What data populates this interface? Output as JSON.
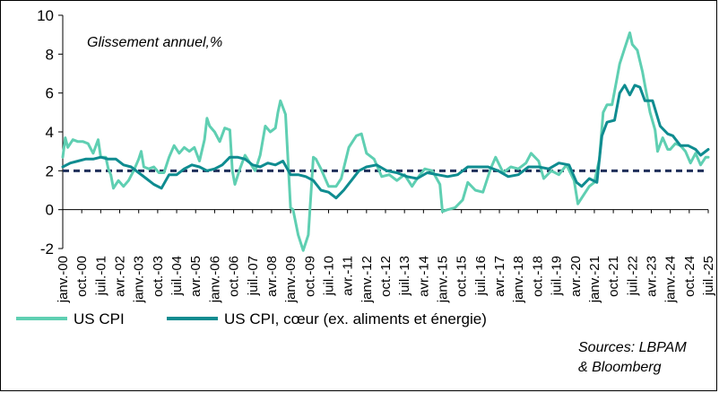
{
  "chart_data": {
    "type": "line",
    "subtitle": "Glissement annuel,%",
    "ylim": [
      -2,
      10
    ],
    "yticks": [
      -2,
      0,
      2,
      4,
      6,
      8,
      10
    ],
    "xlim": [
      2000.0,
      2025.5
    ],
    "reference_line": {
      "y": 2,
      "style": "dashed",
      "color": "#1f2f5a"
    },
    "xtick_labels": [
      "janv.-00",
      "oct.-00",
      "juil.-01",
      "avr.-02",
      "janv.-03",
      "oct.-03",
      "juil.-04",
      "avr.-05",
      "janv.-06",
      "oct.-06",
      "juil.-07",
      "avr.-08",
      "janv.-09",
      "oct.-09",
      "juil.-10",
      "avr.-11",
      "janv.-12",
      "oct.-12",
      "juil.-13",
      "avr.-14",
      "janv.-15",
      "oct.-15",
      "juil.-16",
      "avr.-17",
      "janv.-18",
      "oct.-18",
      "juil.-19",
      "avr.-20",
      "janv.-21",
      "oct.-21",
      "juil.-22",
      "avr.-23",
      "janv.-24",
      "oct.-24",
      "juil.-25"
    ],
    "series": [
      {
        "name": "US CPI",
        "color": "#5fcfb2",
        "x": [
          2000.0,
          2000.1,
          2000.2,
          2000.4,
          2000.6,
          2000.8,
          2001.0,
          2001.2,
          2001.4,
          2001.5,
          2001.7,
          2001.8,
          2001.9,
          2002.0,
          2002.2,
          2002.4,
          2002.6,
          2002.8,
          2003.0,
          2003.1,
          2003.2,
          2003.4,
          2003.6,
          2003.8,
          2004.0,
          2004.2,
          2004.4,
          2004.6,
          2004.8,
          2005.0,
          2005.2,
          2005.4,
          2005.6,
          2005.7,
          2005.8,
          2006.0,
          2006.2,
          2006.4,
          2006.6,
          2006.7,
          2006.8,
          2007.0,
          2007.2,
          2007.4,
          2007.6,
          2007.8,
          2008.0,
          2008.2,
          2008.4,
          2008.5,
          2008.6,
          2008.8,
          2009.0,
          2009.1,
          2009.3,
          2009.5,
          2009.7,
          2009.9,
          2010.0,
          2010.2,
          2010.5,
          2010.8,
          2011.0,
          2011.3,
          2011.6,
          2011.8,
          2012.0,
          2012.3,
          2012.6,
          2012.9,
          2013.2,
          2013.5,
          2013.8,
          2014.0,
          2014.3,
          2014.6,
          2014.9,
          2015.0,
          2015.2,
          2015.5,
          2015.8,
          2016.0,
          2016.3,
          2016.6,
          2016.9,
          2017.1,
          2017.4,
          2017.7,
          2018.0,
          2018.3,
          2018.5,
          2018.8,
          2019.0,
          2019.3,
          2019.6,
          2019.9,
          2020.2,
          2020.35,
          2020.5,
          2020.8,
          2021.0,
          2021.2,
          2021.35,
          2021.5,
          2021.7,
          2021.9,
          2022.0,
          2022.2,
          2022.4,
          2022.5,
          2022.7,
          2022.9,
          2023.0,
          2023.2,
          2023.4,
          2023.5,
          2023.7,
          2023.9,
          2024.0,
          2024.2,
          2024.4,
          2024.6,
          2024.8,
          2025.0,
          2025.2,
          2025.4,
          2025.5
        ],
        "y": [
          2.7,
          3.7,
          3.2,
          3.6,
          3.5,
          3.5,
          3.4,
          2.9,
          3.6,
          2.7,
          2.7,
          2.1,
          1.8,
          1.1,
          1.5,
          1.2,
          1.5,
          2.0,
          2.6,
          3.0,
          2.2,
          2.1,
          2.2,
          1.9,
          1.9,
          2.7,
          3.3,
          2.9,
          3.2,
          3.0,
          3.2,
          2.5,
          3.6,
          4.7,
          4.3,
          4.0,
          3.5,
          4.2,
          4.1,
          2.0,
          1.3,
          2.1,
          2.8,
          2.4,
          2.0,
          2.8,
          4.3,
          4.0,
          4.2,
          5.0,
          5.6,
          4.9,
          0.1,
          0.0,
          -1.3,
          -2.1,
          -1.3,
          2.7,
          2.6,
          2.1,
          1.2,
          1.2,
          1.6,
          3.2,
          3.8,
          3.9,
          2.9,
          2.6,
          1.7,
          1.8,
          1.5,
          1.8,
          1.2,
          1.6,
          2.1,
          2.0,
          1.3,
          -0.1,
          0.0,
          0.1,
          0.5,
          1.4,
          1.0,
          0.9,
          2.1,
          2.7,
          1.9,
          2.2,
          2.1,
          2.4,
          2.9,
          2.5,
          1.6,
          2.0,
          1.8,
          2.3,
          1.5,
          0.3,
          0.6,
          1.2,
          1.4,
          2.6,
          5.0,
          5.4,
          5.4,
          6.8,
          7.5,
          8.3,
          9.1,
          8.5,
          8.2,
          7.1,
          6.4,
          5.0,
          4.1,
          3.0,
          3.7,
          3.1,
          3.1,
          3.4,
          3.3,
          3.0,
          2.4,
          2.9,
          2.3,
          2.7,
          2.7
        ]
      },
      {
        "name": "US CPI, cœur (ex. aliments et énergie)",
        "color": "#0f8c90",
        "x": [
          2000.0,
          2000.3,
          2000.6,
          2000.9,
          2001.2,
          2001.5,
          2001.8,
          2002.1,
          2002.4,
          2002.7,
          2003.0,
          2003.3,
          2003.6,
          2003.9,
          2004.2,
          2004.5,
          2004.8,
          2005.1,
          2005.4,
          2005.7,
          2006.0,
          2006.3,
          2006.6,
          2006.9,
          2007.2,
          2007.5,
          2007.8,
          2008.1,
          2008.4,
          2008.7,
          2009.0,
          2009.3,
          2009.6,
          2009.9,
          2010.2,
          2010.5,
          2010.8,
          2011.1,
          2011.4,
          2011.7,
          2012.0,
          2012.4,
          2012.8,
          2013.2,
          2013.6,
          2014.0,
          2014.4,
          2014.8,
          2015.2,
          2015.6,
          2016.0,
          2016.4,
          2016.8,
          2017.2,
          2017.6,
          2018.0,
          2018.4,
          2018.8,
          2019.2,
          2019.6,
          2020.0,
          2020.3,
          2020.5,
          2020.8,
          2021.1,
          2021.3,
          2021.5,
          2021.8,
          2022.0,
          2022.2,
          2022.4,
          2022.6,
          2022.8,
          2023.0,
          2023.3,
          2023.6,
          2023.9,
          2024.1,
          2024.4,
          2024.7,
          2025.0,
          2025.2,
          2025.5
        ],
        "y": [
          2.2,
          2.4,
          2.5,
          2.6,
          2.6,
          2.7,
          2.6,
          2.6,
          2.3,
          2.2,
          1.9,
          1.6,
          1.3,
          1.1,
          1.8,
          1.8,
          2.1,
          2.3,
          2.2,
          2.0,
          2.1,
          2.3,
          2.7,
          2.7,
          2.6,
          2.3,
          2.2,
          2.4,
          2.3,
          2.5,
          1.8,
          1.8,
          1.7,
          1.5,
          1.0,
          0.9,
          0.6,
          1.0,
          1.5,
          2.0,
          2.2,
          2.3,
          2.0,
          1.9,
          1.7,
          1.6,
          1.9,
          1.8,
          1.7,
          1.8,
          2.2,
          2.2,
          2.2,
          2.0,
          1.7,
          1.8,
          2.2,
          2.2,
          2.1,
          2.4,
          2.3,
          1.4,
          1.2,
          1.6,
          1.4,
          3.8,
          4.5,
          4.6,
          6.0,
          6.4,
          5.9,
          6.4,
          6.3,
          5.6,
          5.6,
          4.3,
          3.9,
          3.8,
          3.3,
          3.3,
          3.1,
          2.8,
          3.1
        ]
      }
    ]
  },
  "legend": {
    "items": [
      {
        "label": "US CPI",
        "color": "#5fcfb2"
      },
      {
        "label": "US CPI, cœur (ex. aliments et énergie)",
        "color": "#0f8c90"
      }
    ]
  },
  "source": {
    "line1": "Sources: LBPAM",
    "line2": "& Bloomberg"
  }
}
